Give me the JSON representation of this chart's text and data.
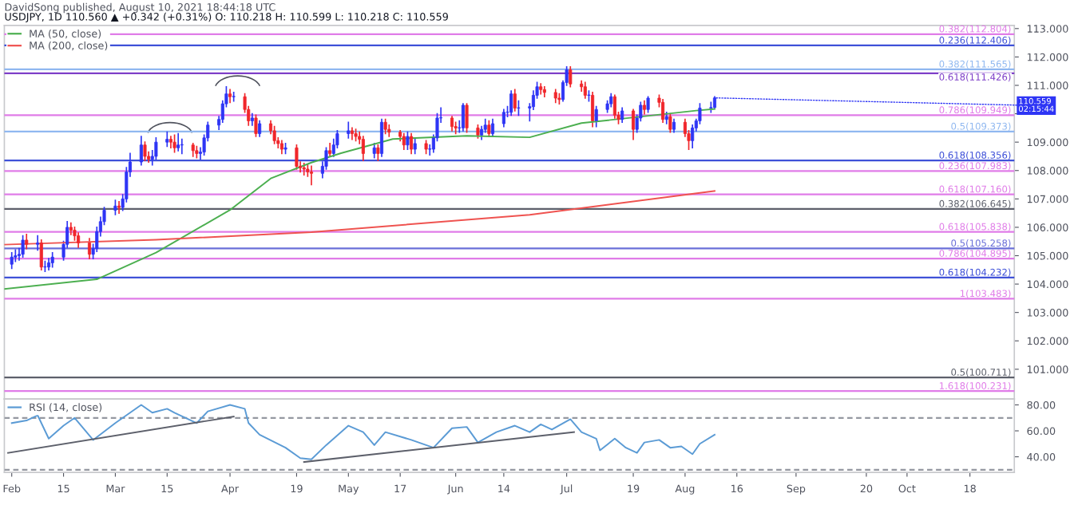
{
  "chart_data": [
    {
      "type": "candlestick",
      "title": "DavidSong published, August 10, 2021 18:44:18 UTC",
      "subtitle": "USDJPY, 1D 110.560 ▲ +0.342 (+0.31%) O: 110.218 H: 110.599 L: 110.218 C: 110.559",
      "x": [
        "2021-02-01",
        "2021-02-02",
        "2021-02-03",
        "2021-02-04",
        "2021-02-05",
        "2021-02-08",
        "2021-02-09",
        "2021-02-10",
        "2021-02-11",
        "2021-02-12",
        "2021-02-15",
        "2021-02-16",
        "2021-02-17",
        "2021-02-18",
        "2021-02-19",
        "2021-02-22",
        "2021-02-23",
        "2021-02-24",
        "2021-02-25",
        "2021-02-26",
        "2021-03-01",
        "2021-03-02",
        "2021-03-03",
        "2021-03-04",
        "2021-03-05",
        "2021-03-08",
        "2021-03-09",
        "2021-03-10",
        "2021-03-11",
        "2021-03-12",
        "2021-03-15",
        "2021-03-16",
        "2021-03-17",
        "2021-03-18",
        "2021-03-19",
        "2021-03-22",
        "2021-03-23",
        "2021-03-24",
        "2021-03-25",
        "2021-03-26",
        "2021-03-29",
        "2021-03-30",
        "2021-03-31",
        "2021-04-01",
        "2021-04-02",
        "2021-04-05",
        "2021-04-06",
        "2021-04-07",
        "2021-04-08",
        "2021-04-09",
        "2021-04-12",
        "2021-04-13",
        "2021-04-14",
        "2021-04-15",
        "2021-04-16",
        "2021-04-19",
        "2021-04-20",
        "2021-04-21",
        "2021-04-22",
        "2021-04-23",
        "2021-04-26",
        "2021-04-27",
        "2021-04-28",
        "2021-04-29",
        "2021-04-30",
        "2021-05-03",
        "2021-05-04",
        "2021-05-05",
        "2021-05-06",
        "2021-05-07",
        "2021-05-10",
        "2021-05-11",
        "2021-05-12",
        "2021-05-13",
        "2021-05-14",
        "2021-05-17",
        "2021-05-18",
        "2021-05-19",
        "2021-05-20",
        "2021-05-21",
        "2021-05-24",
        "2021-05-25",
        "2021-05-26",
        "2021-05-27",
        "2021-05-28",
        "2021-05-31",
        "2021-06-01",
        "2021-06-02",
        "2021-06-03",
        "2021-06-04",
        "2021-06-07",
        "2021-06-08",
        "2021-06-09",
        "2021-06-10",
        "2021-06-11",
        "2021-06-14",
        "2021-06-15",
        "2021-06-16",
        "2021-06-17",
        "2021-06-18",
        "2021-06-21",
        "2021-06-22",
        "2021-06-23",
        "2021-06-24",
        "2021-06-25",
        "2021-06-28",
        "2021-06-29",
        "2021-06-30",
        "2021-07-01",
        "2021-07-02",
        "2021-07-05",
        "2021-07-06",
        "2021-07-07",
        "2021-07-08",
        "2021-07-09",
        "2021-07-12",
        "2021-07-13",
        "2021-07-14",
        "2021-07-15",
        "2021-07-16",
        "2021-07-19",
        "2021-07-20",
        "2021-07-21",
        "2021-07-22",
        "2021-07-23",
        "2021-07-26",
        "2021-07-27",
        "2021-07-28",
        "2021-07-29",
        "2021-07-30",
        "2021-08-02",
        "2021-08-03",
        "2021-08-04",
        "2021-08-05",
        "2021-08-06",
        "2021-08-09",
        "2021-08-10"
      ],
      "ohlc": [
        [
          104.7,
          105.1,
          104.55,
          104.95
        ],
        [
          104.95,
          105.2,
          104.8,
          105.0
        ],
        [
          105.0,
          105.25,
          104.85,
          105.05
        ],
        [
          105.05,
          105.7,
          104.95,
          105.55
        ],
        [
          105.55,
          105.75,
          105.25,
          105.4
        ],
        [
          105.4,
          105.7,
          105.2,
          105.45
        ],
        [
          105.45,
          105.55,
          104.5,
          104.6
        ],
        [
          104.6,
          104.8,
          104.45,
          104.6
        ],
        [
          104.6,
          104.9,
          104.5,
          104.75
        ],
        [
          104.75,
          105.1,
          104.6,
          104.95
        ],
        [
          104.95,
          105.5,
          104.85,
          105.4
        ],
        [
          105.4,
          106.2,
          105.3,
          106.0
        ],
        [
          106.0,
          106.15,
          105.75,
          105.9
        ],
        [
          105.9,
          106.0,
          105.55,
          105.7
        ],
        [
          105.7,
          105.8,
          105.3,
          105.45
        ],
        [
          105.45,
          105.6,
          104.9,
          105.05
        ],
        [
          105.05,
          105.4,
          104.9,
          105.25
        ],
        [
          105.25,
          106.0,
          105.15,
          105.85
        ],
        [
          105.85,
          106.35,
          105.7,
          106.2
        ],
        [
          106.2,
          106.7,
          106.1,
          106.6
        ],
        [
          106.6,
          106.95,
          106.45,
          106.75
        ],
        [
          106.75,
          106.9,
          106.5,
          106.7
        ],
        [
          106.7,
          107.15,
          106.6,
          107.0
        ],
        [
          107.0,
          108.1,
          106.9,
          107.95
        ],
        [
          107.95,
          108.6,
          107.8,
          108.3
        ],
        [
          108.3,
          109.2,
          108.2,
          108.9
        ],
        [
          108.9,
          109.0,
          108.35,
          108.5
        ],
        [
          108.5,
          108.65,
          108.3,
          108.4
        ],
        [
          108.4,
          108.7,
          108.2,
          108.5
        ],
        [
          108.5,
          109.15,
          108.4,
          109.0
        ],
        [
          109.0,
          109.35,
          108.85,
          109.1
        ],
        [
          109.1,
          109.2,
          108.8,
          109.0
        ],
        [
          109.0,
          109.25,
          108.65,
          108.8
        ],
        [
          108.8,
          109.3,
          108.7,
          108.9
        ],
        [
          108.9,
          109.1,
          108.6,
          108.9
        ],
        [
          108.9,
          108.95,
          108.5,
          108.7
        ],
        [
          108.7,
          108.85,
          108.45,
          108.6
        ],
        [
          108.6,
          108.8,
          108.4,
          108.65
        ],
        [
          108.65,
          109.25,
          108.55,
          109.15
        ],
        [
          109.15,
          109.7,
          109.05,
          109.6
        ],
        [
          109.6,
          109.9,
          109.45,
          109.8
        ],
        [
          109.8,
          110.45,
          109.7,
          110.35
        ],
        [
          110.35,
          110.95,
          110.25,
          110.7
        ],
        [
          110.7,
          110.85,
          110.4,
          110.6
        ],
        [
          110.6,
          110.75,
          110.45,
          110.6
        ],
        [
          110.6,
          110.7,
          110.05,
          110.15
        ],
        [
          110.15,
          110.25,
          109.6,
          109.75
        ],
        [
          109.75,
          110.0,
          109.6,
          109.85
        ],
        [
          109.85,
          109.95,
          109.2,
          109.3
        ],
        [
          109.3,
          109.75,
          109.2,
          109.65
        ],
        [
          109.65,
          109.75,
          109.3,
          109.4
        ],
        [
          109.4,
          109.55,
          108.95,
          109.05
        ],
        [
          109.05,
          109.15,
          108.8,
          108.95
        ],
        [
          108.95,
          109.05,
          108.6,
          108.75
        ],
        [
          108.75,
          108.95,
          108.6,
          108.8
        ],
        [
          108.8,
          108.9,
          108.05,
          108.15
        ],
        [
          108.15,
          108.3,
          107.95,
          108.1
        ],
        [
          108.1,
          108.25,
          107.85,
          108.05
        ],
        [
          108.05,
          108.2,
          107.8,
          107.95
        ],
        [
          107.95,
          108.15,
          107.5,
          107.9
        ],
        [
          107.9,
          108.3,
          107.75,
          108.15
        ],
        [
          108.15,
          108.8,
          108.05,
          108.7
        ],
        [
          108.7,
          108.95,
          108.5,
          108.6
        ],
        [
          108.6,
          109.1,
          108.5,
          108.9
        ],
        [
          108.9,
          109.4,
          108.8,
          109.3
        ],
        [
          109.3,
          109.7,
          109.15,
          109.4
        ],
        [
          109.4,
          109.5,
          109.1,
          109.3
        ],
        [
          109.3,
          109.45,
          109.05,
          109.2
        ],
        [
          109.2,
          109.35,
          108.95,
          109.1
        ],
        [
          109.1,
          109.2,
          108.35,
          108.6
        ],
        [
          108.6,
          108.95,
          108.45,
          108.8
        ],
        [
          108.8,
          108.9,
          108.35,
          108.6
        ],
        [
          108.6,
          109.8,
          108.5,
          109.7
        ],
        [
          109.7,
          109.8,
          109.3,
          109.45
        ],
        [
          109.45,
          109.6,
          109.2,
          109.35
        ],
        [
          109.35,
          109.4,
          109.05,
          109.2
        ],
        [
          109.2,
          109.3,
          108.75,
          108.9
        ],
        [
          108.9,
          109.35,
          108.75,
          109.2
        ],
        [
          109.2,
          109.3,
          108.6,
          108.75
        ],
        [
          108.75,
          109.1,
          108.6,
          108.95
        ],
        [
          108.95,
          109.05,
          108.6,
          108.75
        ],
        [
          108.75,
          108.9,
          108.55,
          108.75
        ],
        [
          108.75,
          109.25,
          108.65,
          109.15
        ],
        [
          109.15,
          110.0,
          109.05,
          109.85
        ],
        [
          109.85,
          110.2,
          109.7,
          109.85
        ],
        [
          109.85,
          109.9,
          109.4,
          109.55
        ],
        [
          109.55,
          109.7,
          109.3,
          109.5
        ],
        [
          109.5,
          109.75,
          109.35,
          109.5
        ],
        [
          109.5,
          110.35,
          109.4,
          110.3
        ],
        [
          110.3,
          110.35,
          109.35,
          109.5
        ],
        [
          109.5,
          109.6,
          109.15,
          109.25
        ],
        [
          109.25,
          109.55,
          109.1,
          109.45
        ],
        [
          109.45,
          109.8,
          109.35,
          109.6
        ],
        [
          109.6,
          109.75,
          109.2,
          109.3
        ],
        [
          109.3,
          109.8,
          109.2,
          109.65
        ],
        [
          109.65,
          110.15,
          109.55,
          110.05
        ],
        [
          110.05,
          110.25,
          109.9,
          110.05
        ],
        [
          110.05,
          110.8,
          109.95,
          110.7
        ],
        [
          110.7,
          110.85,
          110.1,
          110.2
        ],
        [
          110.2,
          110.45,
          109.95,
          110.2
        ],
        [
          110.2,
          110.35,
          109.75,
          110.25
        ],
        [
          110.25,
          110.8,
          110.15,
          110.65
        ],
        [
          110.65,
          111.1,
          110.55,
          110.95
        ],
        [
          110.95,
          111.05,
          110.7,
          110.85
        ],
        [
          110.85,
          110.95,
          110.6,
          110.75
        ],
        [
          110.75,
          110.85,
          110.4,
          110.55
        ],
        [
          110.55,
          110.7,
          110.35,
          110.5
        ],
        [
          110.5,
          111.15,
          110.45,
          111.1
        ],
        [
          111.1,
          111.65,
          111.0,
          111.55
        ],
        [
          111.55,
          111.65,
          110.95,
          111.05
        ],
        [
          111.05,
          111.15,
          110.8,
          110.95
        ],
        [
          110.95,
          111.1,
          110.55,
          110.65
        ],
        [
          110.65,
          110.8,
          110.45,
          110.65
        ],
        [
          110.65,
          110.75,
          109.55,
          109.75
        ],
        [
          109.75,
          110.25,
          109.55,
          110.15
        ],
        [
          110.15,
          110.45,
          110.05,
          110.35
        ],
        [
          110.35,
          110.7,
          110.25,
          110.6
        ],
        [
          110.6,
          110.65,
          109.85,
          109.95
        ],
        [
          109.95,
          110.05,
          109.65,
          109.8
        ],
        [
          109.8,
          110.2,
          109.7,
          110.1
        ],
        [
          110.1,
          110.15,
          109.1,
          109.45
        ],
        [
          109.45,
          109.95,
          109.35,
          109.85
        ],
        [
          109.85,
          110.4,
          109.75,
          110.3
        ],
        [
          110.3,
          110.45,
          110.0,
          110.15
        ],
        [
          110.15,
          110.6,
          110.05,
          110.55
        ],
        [
          110.55,
          110.65,
          110.25,
          110.4
        ],
        [
          110.4,
          110.5,
          109.7,
          109.8
        ],
        [
          109.8,
          110.05,
          109.65,
          109.9
        ],
        [
          109.9,
          110.0,
          109.35,
          109.45
        ],
        [
          109.45,
          109.8,
          109.35,
          109.7
        ],
        [
          109.7,
          109.8,
          109.2,
          109.3
        ],
        [
          109.3,
          109.4,
          108.75,
          109.05
        ],
        [
          109.05,
          109.6,
          108.8,
          109.5
        ],
        [
          109.5,
          109.8,
          109.4,
          109.75
        ],
        [
          109.75,
          110.35,
          109.65,
          110.2
        ],
        [
          110.2,
          110.4,
          110.05,
          110.218
        ],
        [
          110.218,
          110.599,
          110.218,
          110.559
        ]
      ],
      "series": [
        {
          "name": "MA (50, close)",
          "type": "line",
          "color": "#4caf50",
          "x": [
            "2021-01-30",
            "2021-02-24",
            "2021-03-12",
            "2021-04-01",
            "2021-04-12",
            "2021-04-23",
            "2021-05-01",
            "2021-05-15",
            "2021-06-04",
            "2021-06-21",
            "2021-07-05",
            "2021-08-05",
            "2021-08-10"
          ],
          "values": [
            103.83,
            104.17,
            105.11,
            106.61,
            107.72,
            108.28,
            108.61,
            109.11,
            109.22,
            109.17,
            109.67,
            110.11,
            110.17
          ]
        },
        {
          "name": "MA (200, close)",
          "type": "line",
          "color": "#ef5350",
          "x": [
            "2021-01-30",
            "2021-03-12",
            "2021-04-23",
            "2021-06-21",
            "2021-08-10"
          ],
          "values": [
            105.39,
            105.56,
            105.83,
            106.44,
            107.28
          ]
        }
      ],
      "ref_lines": [
        {
          "axis": "y",
          "value": 112.804,
          "label": "0.382(112.804)",
          "color": "#e07ce8",
          "line_style": "solid"
        },
        {
          "axis": "y",
          "value": 112.406,
          "label": "0.236(112.406)",
          "color": "#3f51d8",
          "line_style": "solid"
        },
        {
          "axis": "y",
          "value": 111.565,
          "label": "0.382(111.565)",
          "color": "#90b8f0",
          "line_style": "solid"
        },
        {
          "axis": "y",
          "value": 111.426,
          "label": "0.618(111.426)",
          "color": "#7e3fc8",
          "line_style": "solid"
        },
        {
          "axis": "y",
          "value": 109.949,
          "label": "0.786(109.949)",
          "color": "#e07ce8",
          "line_style": "solid"
        },
        {
          "axis": "y",
          "value": 109.373,
          "label": "0.5(109.373)",
          "color": "#90b8f0",
          "line_style": "solid"
        },
        {
          "axis": "y",
          "value": 108.356,
          "label": "0.618(108.356)",
          "color": "#3f51d8",
          "line_style": "solid"
        },
        {
          "axis": "y",
          "value": 107.983,
          "label": "0.236(107.983)",
          "color": "#e07ce8",
          "line_style": "solid"
        },
        {
          "axis": "y",
          "value": 107.16,
          "label": "0.618(107.160)",
          "color": "#e07ce8",
          "line_style": "solid"
        },
        {
          "axis": "y",
          "value": 106.645,
          "label": "0.382(106.645)",
          "color": "#5d606b",
          "line_style": "solid"
        },
        {
          "axis": "y",
          "value": 105.838,
          "label": "0.618(105.838)",
          "color": "#e07ce8",
          "line_style": "solid"
        },
        {
          "axis": "y",
          "value": 105.258,
          "label": "0.5(105.258)",
          "color": "#6a6fd8",
          "line_style": "solid"
        },
        {
          "axis": "y",
          "value": 104.895,
          "label": "0.786(104.895)",
          "color": "#e07ce8",
          "line_style": "solid"
        },
        {
          "axis": "y",
          "value": 104.232,
          "label": "0.618(104.232)",
          "color": "#3f51d8",
          "line_style": "solid"
        },
        {
          "axis": "y",
          "value": 103.483,
          "label": "1(103.483)",
          "color": "#e07ce8",
          "line_style": "solid"
        },
        {
          "axis": "y",
          "value": 100.711,
          "label": "0.5(100.711)",
          "color": "#5d606b",
          "line_style": "solid"
        },
        {
          "axis": "y",
          "value": 100.231,
          "label": "1.618(100.231)",
          "color": "#e07ce8",
          "line_style": "solid"
        }
      ],
      "annotations": [
        {
          "text": "110.559\n02:15:44",
          "x": "2021-08-10",
          "y": 110.559
        }
      ],
      "xlim": [
        "2021-01-30",
        "2021-10-30"
      ],
      "ylim": [
        99.95,
        113.11
      ],
      "yticks": [
        {
          "value": 101,
          "label": "101.000"
        },
        {
          "value": 102,
          "label": "102.000"
        },
        {
          "value": 103,
          "label": "103.000"
        },
        {
          "value": 104,
          "label": "104.000"
        },
        {
          "value": 105,
          "label": "105.000"
        },
        {
          "value": 106,
          "label": "106.000"
        },
        {
          "value": 107,
          "label": "107.000"
        },
        {
          "value": 108,
          "label": "108.000"
        },
        {
          "value": 109,
          "label": "109.000"
        },
        {
          "value": 110,
          "label": null
        },
        {
          "value": 111,
          "label": "111.000"
        },
        {
          "value": 112,
          "label": "112.000"
        },
        {
          "value": 113,
          "label": "113.000"
        }
      ],
      "tick_labels": "y",
      "grid": false,
      "legend": "top left"
    },
    {
      "type": "line",
      "series": [
        {
          "name": "RSI (14, close)",
          "color": "#5b9bd5",
          "x": [
            "2021-02-01",
            "2021-02-05",
            "2021-02-08",
            "2021-02-11",
            "2021-02-15",
            "2021-02-18",
            "2021-02-23",
            "2021-03-01",
            "2021-03-04",
            "2021-03-08",
            "2021-03-11",
            "2021-03-15",
            "2021-03-17",
            "2021-03-23",
            "2021-03-26",
            "2021-04-01",
            "2021-04-05",
            "2021-04-06",
            "2021-04-09",
            "2021-04-16",
            "2021-04-20",
            "2021-04-23",
            "2021-04-27",
            "2021-05-03",
            "2021-05-07",
            "2021-05-10",
            "2021-05-13",
            "2021-05-20",
            "2021-05-26",
            "2021-05-31",
            "2021-06-04",
            "2021-06-07",
            "2021-06-12",
            "2021-06-17",
            "2021-06-21",
            "2021-06-24",
            "2021-06-27",
            "2021-07-02",
            "2021-07-05",
            "2021-07-09",
            "2021-07-10",
            "2021-07-14",
            "2021-07-17",
            "2021-07-20",
            "2021-07-22",
            "2021-07-26",
            "2021-07-29",
            "2021-08-01",
            "2021-08-04",
            "2021-08-06",
            "2021-08-10"
          ],
          "values": [
            66,
            68,
            72,
            54,
            64,
            70,
            53,
            66,
            72,
            80,
            74,
            77,
            74,
            66,
            75,
            80,
            77,
            66,
            57,
            47,
            39,
            38,
            49,
            64,
            59,
            49,
            59,
            53,
            47,
            62,
            63,
            51,
            59,
            64,
            59,
            65,
            61,
            69,
            59,
            54,
            45,
            54,
            47,
            43,
            51,
            53,
            47,
            48,
            42,
            50,
            57
          ]
        },
        {
          "type": "line",
          "color": "#5d606b",
          "x": [
            "2021-01-31",
            "2021-04-02"
          ],
          "values": [
            43,
            71
          ]
        },
        {
          "type": "line",
          "color": "#5d606b",
          "x": [
            "2021-04-21",
            "2021-07-03"
          ],
          "values": [
            36,
            59
          ]
        }
      ],
      "ref_lines": [
        {
          "axis": "y",
          "value": 70,
          "label": null,
          "color": "#9598a1",
          "line_style": "dashed"
        },
        {
          "axis": "y",
          "value": 30,
          "label": null,
          "color": "#9598a1",
          "line_style": "dashed"
        }
      ],
      "xlim": [
        "2021-01-30",
        "2021-10-30"
      ],
      "xticks": [
        {
          "value": "2021-02-01",
          "label": "Feb"
        },
        {
          "value": "2021-02-15",
          "label": "15"
        },
        {
          "value": "2021-03-01",
          "label": "Mar"
        },
        {
          "value": "2021-03-15",
          "label": "15"
        },
        {
          "value": "2021-04-01",
          "label": "Apr"
        },
        {
          "value": "2021-04-19",
          "label": "19"
        },
        {
          "value": "2021-05-03",
          "label": "May"
        },
        {
          "value": "2021-05-17",
          "label": "17"
        },
        {
          "value": "2021-06-01",
          "label": "Jun"
        },
        {
          "value": "2021-06-14",
          "label": "14"
        },
        {
          "value": "2021-07-01",
          "label": "Jul"
        },
        {
          "value": "2021-07-19",
          "label": "19"
        },
        {
          "value": "2021-08-02",
          "label": "Aug"
        },
        {
          "value": "2021-08-16",
          "label": "16"
        },
        {
          "value": "2021-09-01",
          "label": "Sep"
        },
        {
          "value": "2021-09-20",
          "label": "20"
        },
        {
          "value": "2021-10-01",
          "label": "Oct"
        },
        {
          "value": "2021-10-18",
          "label": "18"
        }
      ],
      "ylim": [
        28,
        84.5
      ],
      "yticks": [
        {
          "value": 40,
          "label": "40.00"
        },
        {
          "value": 60,
          "label": "60.00"
        },
        {
          "value": 80,
          "label": "80.00"
        }
      ],
      "grid": false,
      "legend": "top left"
    }
  ]
}
